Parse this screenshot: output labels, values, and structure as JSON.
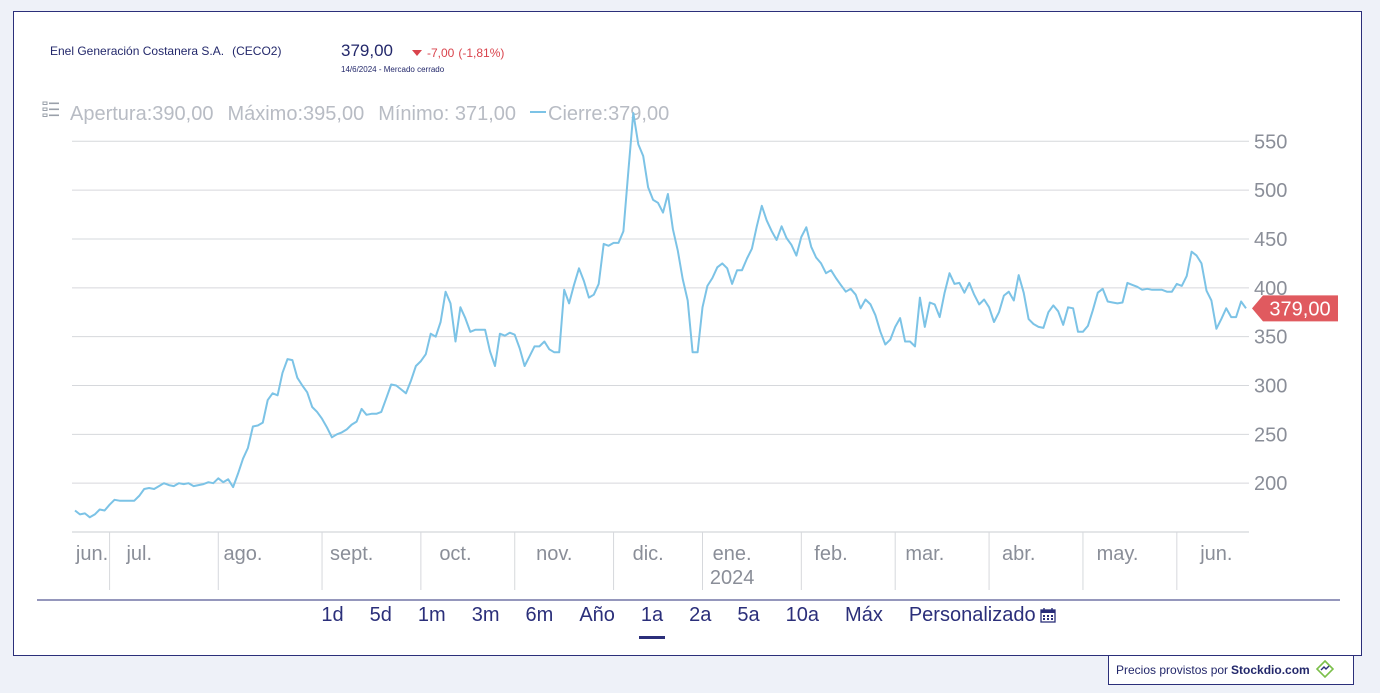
{
  "header": {
    "company": "Enel Generación Costanera S.A.",
    "symbol": "(CECO2)",
    "price": "379,00",
    "change": "-7,00",
    "change_pct": "(-1,81%)",
    "date": "14/6/2024",
    "separator": "-",
    "market_status": "Mercado cerrado"
  },
  "ohlc": {
    "open_label": "Apertura:",
    "open_value": "390,00",
    "high_label": "Máximo:",
    "high_value": "395,00",
    "low_label": "Mínimo:",
    "low_value": " 371,00",
    "close_label": "Cierre:",
    "close_value": "379,00"
  },
  "colors": {
    "line": "#7cc3e6",
    "price_tag": "#e05a5f",
    "brand": "#2b2f7a",
    "down": "#d9434c"
  },
  "chart_data": {
    "type": "line",
    "title": "",
    "xlabel": "",
    "ylabel": "",
    "ylim": [
      150,
      580
    ],
    "y_ticks": [
      550,
      500,
      450,
      400,
      350,
      300,
      250,
      200
    ],
    "y_tick_labels": [
      "550",
      "500",
      "450",
      "400",
      "350",
      "300",
      "250",
      "200"
    ],
    "grid": true,
    "x_ticks": [
      {
        "label": "jun.",
        "sub": "",
        "pos": 0
      },
      {
        "label": "jul.",
        "sub": "",
        "pos": 13
      },
      {
        "label": "ago.",
        "sub": "",
        "pos": 34
      },
      {
        "label": "sept.",
        "sub": "",
        "pos": 56
      },
      {
        "label": "oct.",
        "sub": "",
        "pos": 77
      },
      {
        "label": "nov.",
        "sub": "",
        "pos": 97
      },
      {
        "label": "dic.",
        "sub": "",
        "pos": 116
      },
      {
        "label": "ene.",
        "sub": "2024",
        "pos": 133
      },
      {
        "label": "feb.",
        "sub": "",
        "pos": 153
      },
      {
        "label": "mar.",
        "sub": "",
        "pos": 172
      },
      {
        "label": "abr.",
        "sub": "",
        "pos": 191
      },
      {
        "label": "may.",
        "sub": "",
        "pos": 211
      },
      {
        "label": "jun.",
        "sub": "",
        "pos": 231
      }
    ],
    "month_separators": [
      7,
      29,
      50,
      70,
      89,
      109,
      127,
      147,
      166,
      185,
      204,
      223
    ],
    "series": [
      {
        "name": "Cierre",
        "values": [
          172,
          168,
          169,
          165,
          168,
          173,
          172,
          178,
          183,
          182,
          182,
          182,
          182,
          187,
          194,
          195,
          194,
          197,
          200,
          198,
          197,
          200,
          199,
          200,
          197,
          198,
          199,
          201,
          200,
          205,
          201,
          204,
          196,
          210,
          225,
          236,
          258,
          259,
          262,
          285,
          292,
          290,
          313,
          327,
          326,
          308,
          300,
          293,
          278,
          273,
          266,
          257,
          247,
          250,
          252,
          255,
          260,
          263,
          276,
          270,
          271,
          271,
          273,
          287,
          301,
          300,
          296,
          292,
          305,
          320,
          325,
          332,
          353,
          350,
          365,
          396,
          384,
          345,
          380,
          369,
          355,
          357,
          357,
          357,
          335,
          320,
          353,
          351,
          354,
          352,
          338,
          320,
          330,
          340,
          340,
          345,
          337,
          334,
          334,
          398,
          384,
          403,
          420,
          407,
          390,
          393,
          404,
          445,
          443,
          446,
          446,
          458,
          520,
          579,
          547,
          535,
          503,
          490,
          487,
          477,
          496,
          460,
          438,
          409,
          387,
          334,
          334,
          380,
          402,
          410,
          421,
          425,
          420,
          404,
          418,
          418,
          430,
          440,
          463,
          484,
          469,
          458,
          449,
          463,
          451,
          444,
          433,
          452,
          462,
          442,
          431,
          425,
          415,
          418,
          410,
          403,
          396,
          399,
          393,
          379,
          388,
          383,
          372,
          355,
          342,
          347,
          360,
          369,
          345,
          345,
          340,
          390,
          360,
          385,
          383,
          370,
          395,
          415,
          404,
          405,
          395,
          405,
          393,
          383,
          388,
          380,
          365,
          375,
          392,
          396,
          387,
          413,
          395,
          368,
          363,
          360,
          359,
          375,
          382,
          376,
          362,
          380,
          379,
          355,
          355,
          361,
          377,
          395,
          399,
          386,
          385,
          384,
          385,
          405,
          403,
          401,
          398,
          399,
          398,
          398,
          398,
          396,
          396,
          404,
          402,
          412,
          437,
          433,
          425,
          397,
          387,
          358,
          368,
          379,
          370,
          370,
          386,
          379
        ]
      }
    ],
    "last_price_label": "379,00"
  },
  "ranges": [
    "1d",
    "5d",
    "1m",
    "3m",
    "6m",
    "Año",
    "1a",
    "2a",
    "5a",
    "10a",
    "Máx",
    "Personalizado"
  ],
  "active_range": "1a",
  "credit": {
    "prefix": "Precios provistos por",
    "brand": "Stockdio.com"
  }
}
